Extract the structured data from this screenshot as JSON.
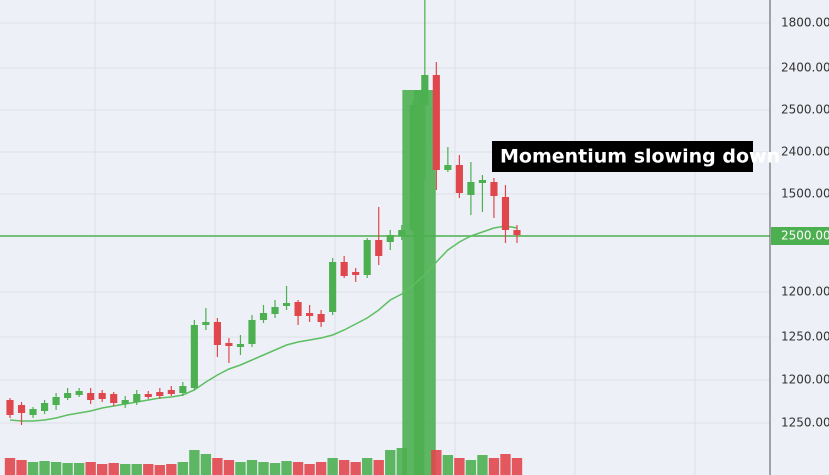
{
  "chart_data": {
    "type": "candlestick",
    "annotation": "Momentium slowing down",
    "price_labels": [
      "1800.00",
      "2400.00",
      "2500.00",
      "2400.00",
      "1500.00",
      "1200.00",
      "1250.00",
      "1200.00",
      "1250.00"
    ],
    "level_line": {
      "value": 234,
      "label": "2500.00",
      "color": "#4caf50"
    },
    "ylim": [
      0,
      470
    ],
    "up_color": "#4caf50",
    "down_color": "#e0474c",
    "ma_color": "#5cbf60",
    "open": [
      70,
      65,
      55,
      59,
      65,
      72,
      75,
      77,
      77,
      76,
      66,
      68,
      76,
      78,
      80,
      77,
      82,
      145,
      148,
      127,
      123,
      126,
      150,
      156,
      164,
      168,
      157,
      156,
      158,
      208,
      198,
      195,
      230,
      228,
      234,
      240,
      365,
      395,
      300,
      305,
      275,
      287,
      288,
      273,
      240
    ],
    "close": [
      55,
      57,
      61,
      67,
      73,
      77,
      79,
      70,
      71,
      67,
      70,
      76,
      73,
      74,
      76,
      84,
      145,
      148,
      125,
      124,
      126,
      150,
      157,
      163,
      167,
      154,
      154,
      148,
      208,
      194,
      195,
      230,
      214,
      235,
      240,
      365,
      395,
      300,
      305,
      277,
      288,
      290,
      274,
      240,
      235
    ],
    "high": [
      72,
      68,
      63,
      70,
      77,
      82,
      82,
      82,
      80,
      78,
      74,
      80,
      79,
      82,
      84,
      88,
      150,
      162,
      152,
      132,
      135,
      155,
      165,
      170,
      184,
      170,
      165,
      160,
      212,
      214,
      202,
      232,
      263,
      240,
      245,
      370,
      470,
      408,
      323,
      315,
      308,
      295,
      292,
      285,
      245
    ],
    "low": [
      52,
      45,
      52,
      56,
      60,
      70,
      73,
      66,
      68,
      64,
      62,
      65,
      71,
      71,
      74,
      74,
      80,
      140,
      113,
      107,
      115,
      123,
      147,
      152,
      160,
      145,
      148,
      143,
      155,
      192,
      188,
      192,
      205,
      220,
      230,
      237,
      290,
      280,
      298,
      272,
      255,
      258,
      252,
      227,
      227
    ],
    "ma": [
      50,
      49,
      49,
      50,
      52,
      55,
      57,
      59,
      62,
      64,
      66,
      68,
      70,
      72,
      73,
      75,
      80,
      88,
      95,
      101,
      105,
      110,
      115,
      120,
      125,
      128,
      130,
      132,
      135,
      140,
      146,
      152,
      160,
      170,
      176,
      185,
      195,
      208,
      220,
      228,
      234,
      238,
      242,
      244,
      242
    ],
    "volume": [
      12,
      10,
      8,
      9,
      8,
      7,
      7,
      8,
      6,
      7,
      6,
      6,
      6,
      5,
      6,
      8,
      20,
      16,
      12,
      10,
      8,
      10,
      8,
      7,
      9,
      8,
      6,
      8,
      12,
      10,
      8,
      12,
      10,
      20,
      22,
      380,
      380,
      20,
      15,
      12,
      10,
      15,
      12,
      16,
      12
    ],
    "grid": true
  }
}
